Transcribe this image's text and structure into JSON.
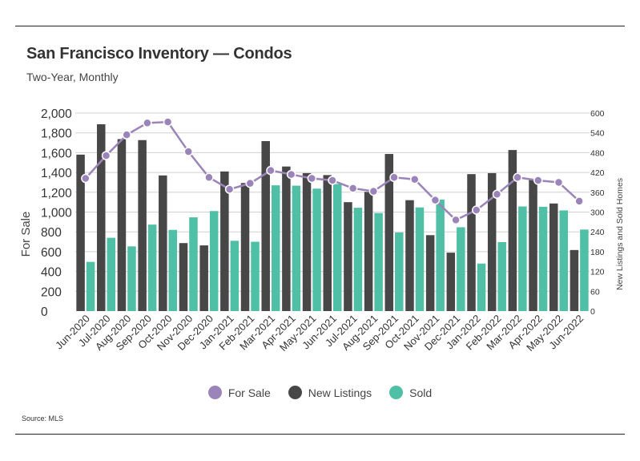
{
  "title": "San Francisco Inventory — Condos",
  "subtitle": "Two-Year, Monthly",
  "source": "Source:  MLS",
  "colors": {
    "for_sale": "#9b84b9",
    "new_listings": "#474747",
    "sold": "#4fbfa6",
    "grid": "#d0d0d0",
    "text": "#444444"
  },
  "legend": [
    {
      "label": "For Sale",
      "color": "#9b84b9"
    },
    {
      "label": "New Listings",
      "color": "#474747"
    },
    {
      "label": "Sold",
      "color": "#4fbfa6"
    }
  ],
  "chart_data": {
    "type": "bar",
    "title": "San Francisco Inventory — Condos",
    "subtitle": "Two-Year, Monthly",
    "ylabel": "For Sale",
    "y2label": "New Listings and Sold Homes",
    "ylim": [
      0,
      2000
    ],
    "y2lim": [
      0,
      600
    ],
    "yticks": [
      "0",
      "200",
      "400",
      "600",
      "800",
      "1,000",
      "1,200",
      "1,400",
      "1,600",
      "1,800",
      "2,000"
    ],
    "y2ticks": [
      "0",
      "60",
      "120",
      "180",
      "240",
      "300",
      "360",
      "420",
      "480",
      "540",
      "600"
    ],
    "grid": "horizontal",
    "legend_position": "bottom",
    "categories": [
      "Jun-2020",
      "Jul-2020",
      "Aug-2020",
      "Sep-2020",
      "Oct-2020",
      "Nov-2020",
      "Dec-2020",
      "Jan-2021",
      "Feb-2021",
      "Mar-2021",
      "Apr-2021",
      "May-2021",
      "Jun-2021",
      "Jul-2021",
      "Aug-2021",
      "Sep-2021",
      "Oct-2021",
      "Nov-2021",
      "Dec-2021",
      "Jan-2022",
      "Feb-2022",
      "Mar-2022",
      "Apr-2022",
      "May-2022",
      "Jun-2022"
    ],
    "series": [
      {
        "name": "New Listings",
        "type": "bar",
        "axis": "right",
        "values": [
          474,
          566,
          521,
          518,
          411,
          206,
          199,
          423,
          388,
          515,
          438,
          418,
          412,
          330,
          361,
          476,
          336,
          230,
          177,
          415,
          418,
          488,
          397,
          326,
          185
        ]
      },
      {
        "name": "Sold",
        "type": "bar",
        "axis": "right",
        "values": [
          149,
          222,
          196,
          262,
          246,
          284,
          303,
          213,
          210,
          381,
          380,
          371,
          385,
          313,
          297,
          238,
          314,
          338,
          254,
          144,
          209,
          317,
          316,
          305,
          247
        ]
      },
      {
        "name": "For Sale",
        "type": "line",
        "axis": "left",
        "values": [
          1340,
          1570,
          1780,
          1900,
          1910,
          1610,
          1350,
          1230,
          1290,
          1420,
          1380,
          1340,
          1320,
          1240,
          1210,
          1350,
          1330,
          1120,
          920,
          1020,
          1180,
          1350,
          1320,
          1300,
          1110
        ]
      }
    ]
  }
}
